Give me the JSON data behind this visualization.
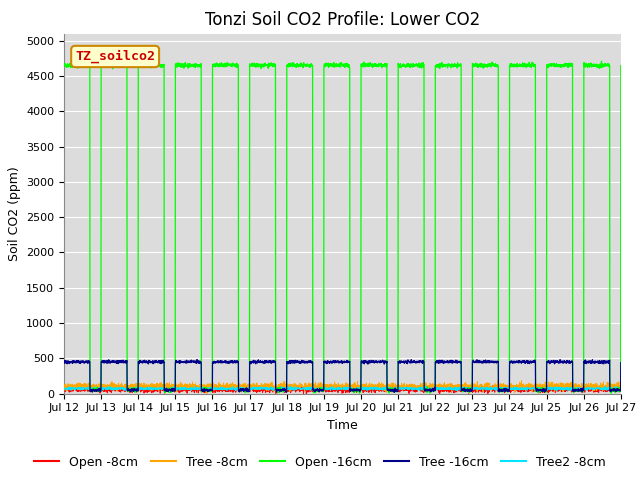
{
  "title": "Tonzi Soil CO2 Profile: Lower CO2",
  "ylabel": "Soil CO2 (ppm)",
  "xlabel": "Time",
  "legend_box_label": "TZ_soilco2",
  "ylim": [
    0,
    5100
  ],
  "yticks": [
    0,
    500,
    1000,
    1500,
    2000,
    2500,
    3000,
    3500,
    4000,
    4500,
    5000
  ],
  "colors": {
    "open_8cm": "#ff0000",
    "tree_8cm": "#ffa500",
    "open_16cm": "#00ff00",
    "tree_16cm": "#00008b",
    "tree2_8cm": "#00e5ff"
  },
  "legend_labels": [
    "Open -8cm",
    "Tree -8cm",
    "Open -16cm",
    "Tree -16cm",
    "Tree2 -8cm"
  ],
  "open_16cm_high": 4650,
  "open_16cm_low": 50,
  "tree_16cm_high": 450,
  "tree_16cm_low": 50,
  "open_8cm_base": 60,
  "tree_8cm_base": 100,
  "tree2_8cm_base": 70,
  "background_color": "#dcdcdc",
  "title_fontsize": 12,
  "axis_fontsize": 9,
  "tick_fontsize": 8,
  "legend_fontsize": 9,
  "legend_box_facecolor": "#ffffcc",
  "legend_box_edgecolor": "#cc8800",
  "legend_box_textcolor": "#cc0000"
}
